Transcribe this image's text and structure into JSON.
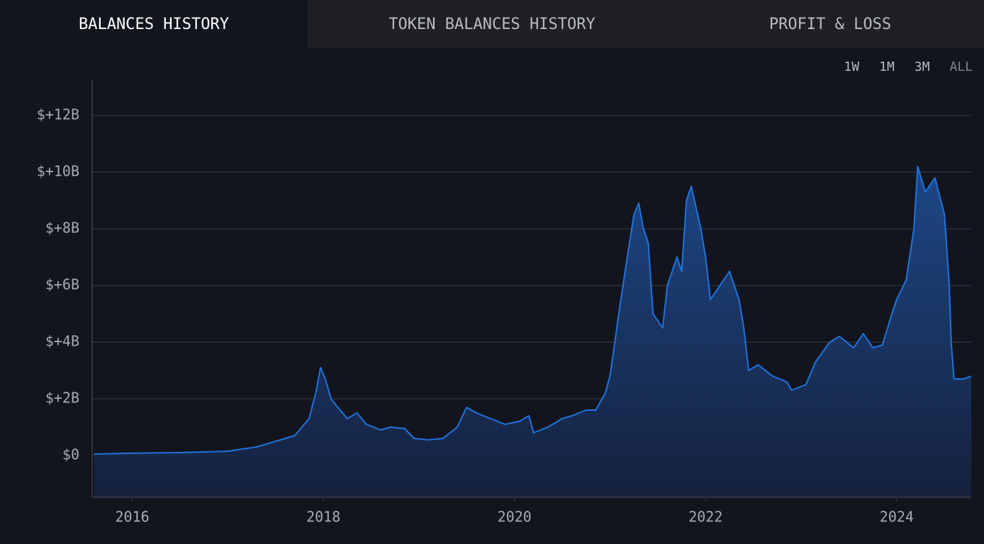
{
  "tabs": [
    "BALANCES HISTORY",
    "TOKEN BALANCES HISTORY",
    "PROFIT & LOSS"
  ],
  "ranges": [
    "1W",
    "1M",
    "3M",
    "ALL"
  ],
  "chart_data": {
    "type": "area",
    "x": [
      2015.6,
      2016.0,
      2016.5,
      2017.0,
      2017.3,
      2017.5,
      2017.7,
      2017.85,
      2017.92,
      2017.97,
      2018.02,
      2018.08,
      2018.15,
      2018.25,
      2018.35,
      2018.45,
      2018.6,
      2018.7,
      2018.85,
      2018.95,
      2019.1,
      2019.25,
      2019.4,
      2019.5,
      2019.6,
      2019.75,
      2019.9,
      2020.05,
      2020.15,
      2020.2,
      2020.35,
      2020.5,
      2020.6,
      2020.75,
      2020.85,
      2020.95,
      2021.0,
      2021.05,
      2021.1,
      2021.18,
      2021.25,
      2021.3,
      2021.35,
      2021.4,
      2021.45,
      2021.55,
      2021.6,
      2021.7,
      2021.75,
      2021.8,
      2021.85,
      2021.95,
      2022.0,
      2022.05,
      2022.15,
      2022.25,
      2022.35,
      2022.4,
      2022.45,
      2022.55,
      2022.7,
      2022.85,
      2022.9,
      2023.05,
      2023.15,
      2023.3,
      2023.4,
      2023.55,
      2023.65,
      2023.75,
      2023.85,
      2023.95,
      2024.0,
      2024.1,
      2024.18,
      2024.22,
      2024.3,
      2024.4,
      2024.5,
      2024.55,
      2024.57,
      2024.6,
      2024.7,
      2024.78
    ],
    "series": [
      {
        "color": "#1f74e0",
        "values": [
          0.05,
          0.08,
          0.1,
          0.15,
          0.3,
          0.5,
          0.7,
          1.3,
          2.2,
          3.1,
          2.7,
          2.0,
          1.7,
          1.3,
          1.5,
          1.1,
          0.9,
          1.0,
          0.95,
          0.6,
          0.55,
          0.6,
          1.0,
          1.7,
          1.5,
          1.3,
          1.1,
          1.2,
          1.4,
          0.8,
          1.0,
          1.3,
          1.4,
          1.6,
          1.6,
          2.2,
          2.8,
          4.0,
          5.2,
          7.0,
          8.5,
          8.9,
          8.0,
          7.5,
          5.0,
          4.5,
          6.0,
          7.0,
          6.5,
          9.0,
          9.5,
          8.0,
          7.0,
          5.5,
          6.0,
          6.5,
          5.5,
          4.5,
          3.0,
          3.2,
          2.8,
          2.6,
          2.3,
          2.5,
          3.3,
          4.0,
          4.2,
          3.8,
          4.3,
          3.8,
          3.9,
          5.0,
          5.5,
          6.2,
          8.0,
          10.2,
          9.3,
          9.8,
          8.5,
          6.0,
          4.0,
          2.7,
          2.7,
          2.8
        ]
      }
    ],
    "xlim": [
      2015.58,
      2024.78
    ],
    "xticks": [
      2016,
      2018,
      2020,
      2022,
      2024
    ],
    "ylim": [
      -1.475,
      13.25
    ],
    "yticks": [
      {
        "value": 0,
        "label": "$0"
      },
      {
        "value": 2,
        "label": "$+2B"
      },
      {
        "value": 4,
        "label": "$+4B"
      },
      {
        "value": 6,
        "label": "$+6B"
      },
      {
        "value": 8,
        "label": "$+8B"
      },
      {
        "value": 10,
        "label": "$+10B"
      },
      {
        "value": 12,
        "label": "$+12B"
      }
    ],
    "grid": true
  }
}
